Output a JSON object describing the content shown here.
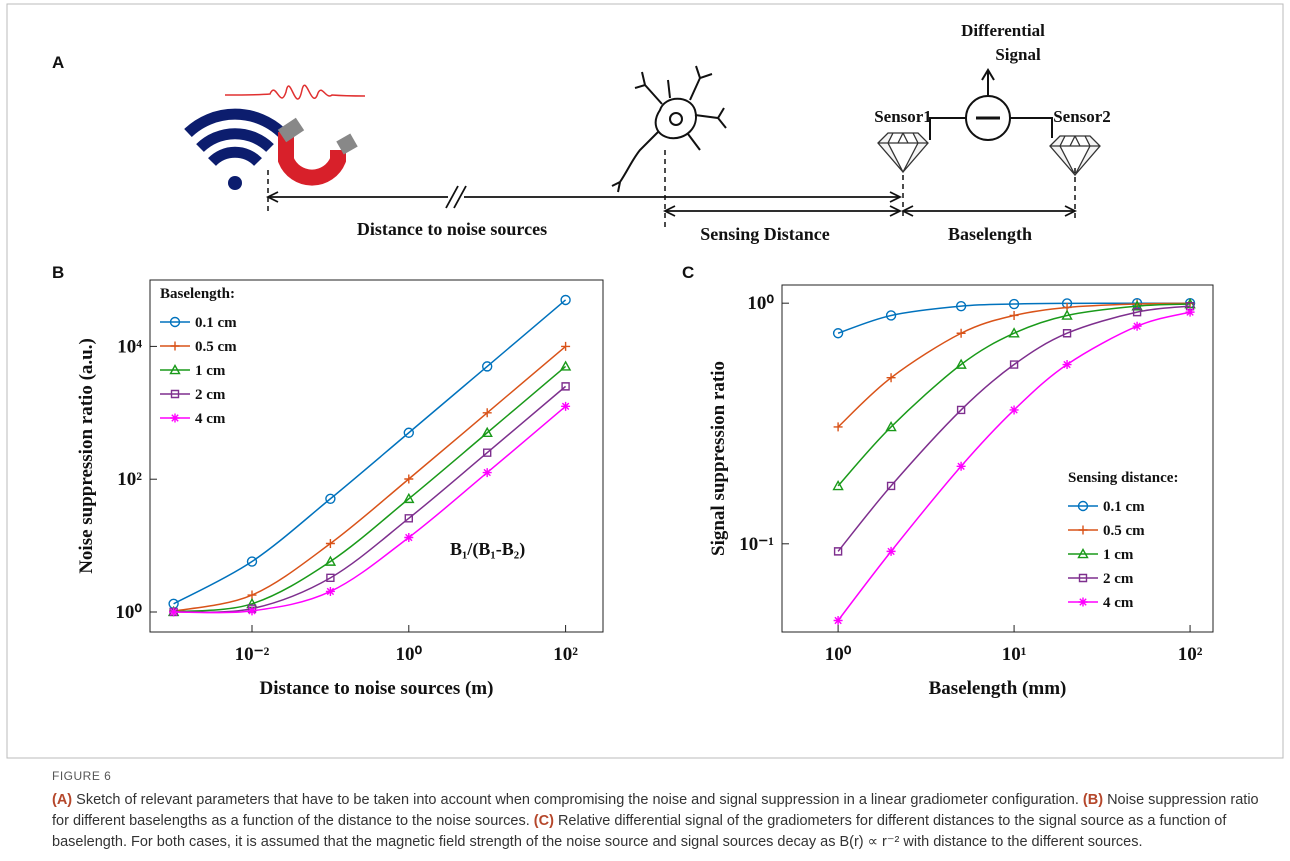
{
  "panel_labels": [
    "A",
    "B",
    "C"
  ],
  "diagram": {
    "differential": "Differential",
    "signal": "Signal",
    "sensor1": "Sensor1",
    "sensor2": "Sensor2",
    "noise_distance": "Distance to noise sources",
    "sensing_distance": "Sensing Distance",
    "baselength": "Baselength"
  },
  "chart_data": [
    {
      "type": "line",
      "x_label": "Distance to noise sources (m)",
      "y_label": "Noise suppression ratio (a.u.)",
      "annotation": "B₁/(B₁-B₂)",
      "log_x": true,
      "log_y": true,
      "xlim": [
        0.0005,
        300
      ],
      "ylim": [
        0.5,
        100000
      ],
      "xticks": [
        {
          "value": 0.01,
          "label": "10⁻²"
        },
        {
          "value": 1,
          "label": "10⁰"
        },
        {
          "value": 100,
          "label": "10²"
        }
      ],
      "yticks": [
        {
          "value": 1,
          "label": "10⁰"
        },
        {
          "value": 100,
          "label": "10²"
        },
        {
          "value": 10000,
          "label": "10⁴"
        }
      ],
      "legend": "upper left",
      "legend_title": "Baselength:",
      "x": [
        0.001,
        0.01,
        0.1,
        1,
        10,
        100
      ],
      "series": [
        {
          "name": "0.1 cm",
          "color": "#0072bd",
          "marker": "circle",
          "values": [
            1.33,
            5.76,
            50.75,
            500.7,
            5000.7,
            50001
          ]
        },
        {
          "name": "0.5 cm",
          "color": "#d95319",
          "marker": "plus",
          "values": [
            1.03,
            1.8,
            10.76,
            100.75,
            1000.75,
            10000.75
          ]
        },
        {
          "name": "1 cm",
          "color": "#1a9a1a",
          "marker": "triangle",
          "values": [
            1.008,
            1.33,
            5.76,
            50.75,
            500.75,
            5000.75
          ]
        },
        {
          "name": "2 cm",
          "color": "#7e2f8e",
          "marker": "square",
          "values": [
            1.002,
            1.125,
            3.27,
            25.75,
            250.75,
            2500.75
          ]
        },
        {
          "name": "4 cm",
          "color": "#ff00ff",
          "marker": "asterisk",
          "values": [
            1.0006,
            1.042,
            2.04,
            13.25,
            125.75,
            1250.75
          ]
        }
      ]
    },
    {
      "type": "line",
      "x_label": "Baselength (mm)",
      "y_label": "Signal suppression ratio",
      "log_x": true,
      "log_y": true,
      "xlim": [
        0.48,
        135
      ],
      "ylim": [
        0.043,
        1.19
      ],
      "xticks": [
        {
          "value": 1,
          "label": "10⁰"
        },
        {
          "value": 10,
          "label": "10¹"
        },
        {
          "value": 100,
          "label": "10²"
        }
      ],
      "yticks": [
        {
          "value": 0.1,
          "label": "10⁻¹"
        },
        {
          "value": 1,
          "label": "10⁰"
        }
      ],
      "legend": "lower right",
      "legend_title": "Sensing distance:",
      "x": [
        1,
        2,
        5,
        10,
        20,
        50,
        100
      ],
      "series": [
        {
          "name": "0.1 cm",
          "color": "#0072bd",
          "marker": "circle",
          "values": [
            0.75,
            0.889,
            0.972,
            0.992,
            0.998,
            0.9996,
            0.9999
          ]
        },
        {
          "name": "0.5 cm",
          "color": "#d95319",
          "marker": "plus",
          "values": [
            0.306,
            0.49,
            0.75,
            0.889,
            0.96,
            0.992,
            0.998
          ]
        },
        {
          "name": "1 cm",
          "color": "#1a9a1a",
          "marker": "triangle",
          "values": [
            0.174,
            0.306,
            0.556,
            0.75,
            0.889,
            0.972,
            0.992
          ]
        },
        {
          "name": "2 cm",
          "color": "#7e2f8e",
          "marker": "square",
          "values": [
            0.093,
            0.174,
            0.36,
            0.556,
            0.75,
            0.918,
            0.972
          ]
        },
        {
          "name": "4 cm",
          "color": "#ff00ff",
          "marker": "asterisk",
          "values": [
            0.048,
            0.093,
            0.21,
            0.36,
            0.556,
            0.802,
            0.918
          ]
        }
      ]
    }
  ],
  "figure_label": "FIGURE 6",
  "caption": [
    {
      "label": "(A)",
      "text": "Sketch of relevant parameters that have to be taken into account when compromising the noise and signal suppression in a linear gradiometer configuration."
    },
    {
      "label": "(B)",
      "text": "Noise suppression ratio for different baselengths as a function of the distance to the noise sources."
    },
    {
      "label": "(C)",
      "text": "Relative differential signal of the gradiometers for different distances to the signal source as a function of baselength. For both cases, it is assumed that the magnetic field strength of the noise source and signal sources decay as B(r) ∝ r⁻² with distance to the different sources."
    }
  ]
}
